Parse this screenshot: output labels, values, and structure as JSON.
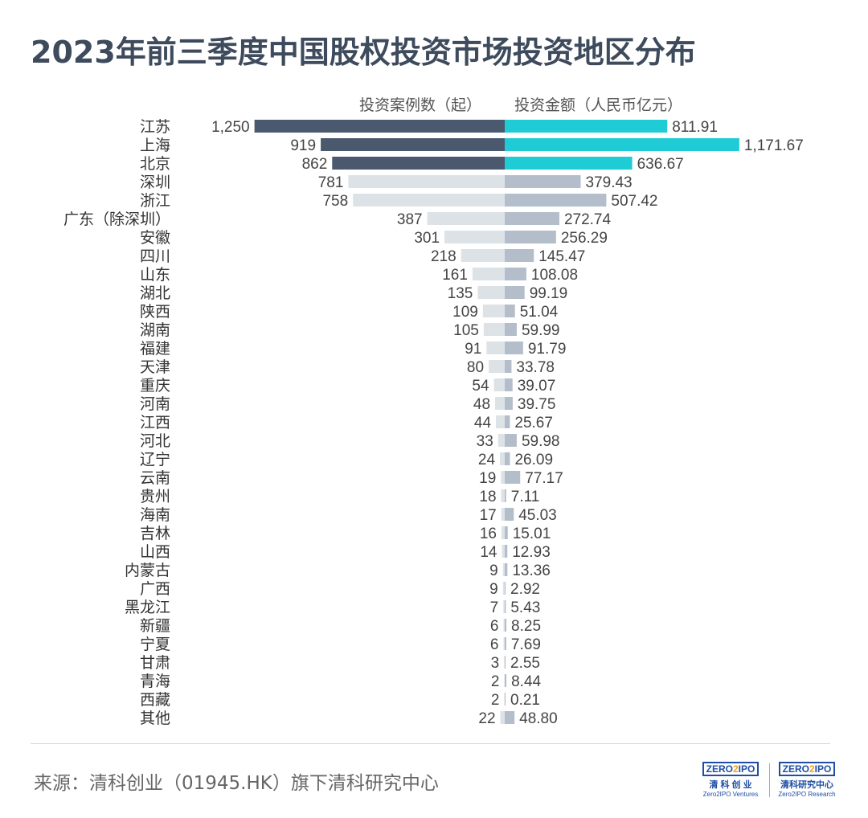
{
  "title": "2023年前三季度中国股权投资市场投资地区分布",
  "source": "来源：清科创业（01945.HK）旗下清科研究中心",
  "logos": [
    {
      "mark": "ZERO2IPO",
      "cn": "清 科 创 业",
      "en": "Zero2IPO Ventures"
    },
    {
      "mark": "ZERO2IPO",
      "cn": "清科研究中心",
      "en": "Zero2IPO Research"
    }
  ],
  "colors": {
    "highlight_left": "#4a596e",
    "highlight_right": "#1fcbd5",
    "left": "#dde2e7",
    "right": "#b4bdca",
    "title": "#3e4b5d"
  },
  "chart_data": {
    "type": "bar",
    "orientation": "horizontal-butterfly",
    "categories": [
      "江苏",
      "上海",
      "北京",
      "深圳",
      "浙江",
      "广东（除深圳）",
      "安徽",
      "四川",
      "山东",
      "湖北",
      "陕西",
      "湖南",
      "福建",
      "天津",
      "重庆",
      "河南",
      "江西",
      "河北",
      "辽宁",
      "云南",
      "贵州",
      "海南",
      "吉林",
      "山西",
      "内蒙古",
      "广西",
      "黑龙江",
      "新疆",
      "宁夏",
      "甘肃",
      "青海",
      "西藏",
      "其他"
    ],
    "series": [
      {
        "name": "投资案例数（起）",
        "side": "left",
        "values": [
          1250,
          919,
          862,
          781,
          758,
          387,
          301,
          218,
          161,
          135,
          109,
          105,
          91,
          80,
          54,
          48,
          44,
          33,
          24,
          19,
          18,
          17,
          16,
          14,
          9,
          9,
          7,
          6,
          6,
          3,
          2,
          2,
          22
        ],
        "labels": [
          "1,250",
          "919",
          "862",
          "781",
          "758",
          "387",
          "301",
          "218",
          "161",
          "135",
          "109",
          "105",
          "91",
          "80",
          "54",
          "48",
          "44",
          "33",
          "24",
          "19",
          "18",
          "17",
          "16",
          "14",
          "9",
          "9",
          "7",
          "6",
          "6",
          "3",
          "2",
          "2",
          "22"
        ]
      },
      {
        "name": "投资金额（人民币亿元）",
        "side": "right",
        "values": [
          811.91,
          1171.67,
          636.67,
          379.43,
          507.42,
          272.74,
          256.29,
          145.47,
          108.08,
          99.19,
          51.04,
          59.99,
          91.79,
          33.78,
          39.07,
          39.75,
          25.67,
          59.98,
          26.09,
          77.17,
          7.11,
          45.03,
          15.01,
          12.93,
          13.36,
          2.92,
          5.43,
          8.25,
          7.69,
          2.55,
          8.44,
          0.21,
          48.8
        ],
        "labels": [
          "811.91",
          "1,171.67",
          "636.67",
          "379.43",
          "507.42",
          "272.74",
          "256.29",
          "145.47",
          "108.08",
          "99.19",
          "51.04",
          "59.99",
          "91.79",
          "33.78",
          "39.07",
          "39.75",
          "25.67",
          "59.98",
          "26.09",
          "77.17",
          "7.11",
          "45.03",
          "15.01",
          "12.93",
          "13.36",
          "2.92",
          "5.43",
          "8.25",
          "7.69",
          "2.55",
          "8.44",
          "0.21",
          "48.80"
        ]
      }
    ],
    "highlighted_top": 3
  }
}
